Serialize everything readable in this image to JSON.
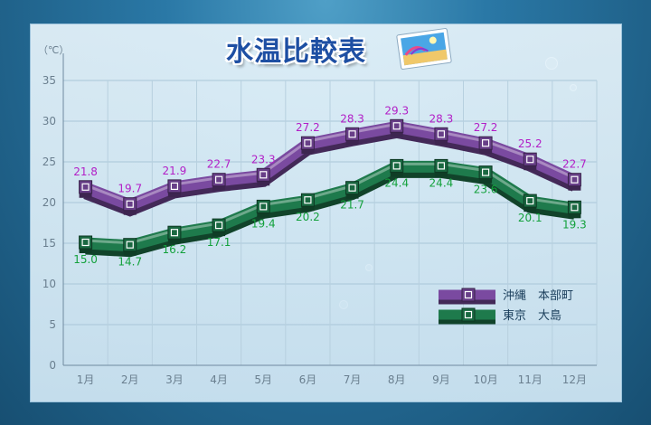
{
  "title": "水温比較表",
  "chart_data": {
    "type": "line",
    "unit_label": "（℃）",
    "categories": [
      "1月",
      "2月",
      "3月",
      "4月",
      "5月",
      "6月",
      "7月",
      "8月",
      "9月",
      "10月",
      "11月",
      "12月"
    ],
    "ylim": [
      0,
      35
    ],
    "yticks": [
      0,
      5,
      10,
      15,
      20,
      25,
      30,
      35
    ],
    "grid": true,
    "legend_position": "bottom-right",
    "series": [
      {
        "name": "沖縄　本部町",
        "color": "#7a4aa0",
        "label_color": "#b21fc7",
        "values": [
          21.8,
          19.7,
          21.9,
          22.7,
          23.3,
          27.2,
          28.3,
          29.3,
          28.3,
          27.2,
          25.2,
          22.7
        ],
        "labels": [
          "21.8",
          "19.7",
          "21.9",
          "22.7",
          "23.3",
          "27.2",
          "28.3",
          "29.3",
          "28.3",
          "27.2",
          "25.2",
          "22.7"
        ]
      },
      {
        "name": "東京　大島",
        "color": "#1e7a4c",
        "label_color": "#13a13c",
        "values": [
          15.0,
          14.7,
          16.2,
          17.1,
          19.4,
          20.2,
          21.7,
          24.4,
          24.4,
          23.6,
          20.1,
          19.3
        ],
        "labels": [
          "15.0",
          "14.7",
          "16.2",
          "17.1",
          "19.4",
          "20.2",
          "21.7",
          "24.4",
          "24.4",
          "23.6",
          "20.1",
          "19.3"
        ]
      }
    ]
  }
}
